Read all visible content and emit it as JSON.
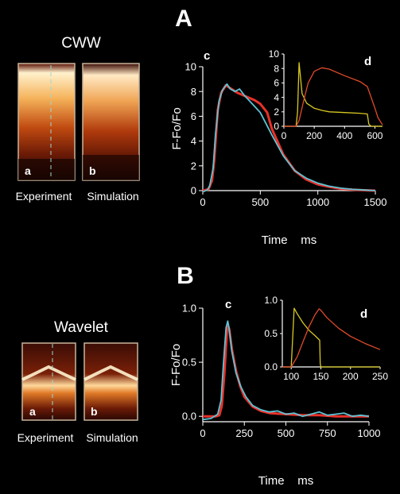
{
  "panels": [
    {
      "letter": "A",
      "condition_label": "CWW",
      "images": [
        {
          "letter": "a",
          "caption": "Experiment"
        },
        {
          "letter": "b",
          "caption": "Simulation"
        }
      ]
    },
    {
      "letter": "B",
      "condition_label": "Wavelet",
      "images": [
        {
          "letter": "a",
          "caption": "Experiment"
        },
        {
          "letter": "b",
          "caption": "Simulation"
        }
      ]
    }
  ],
  "colors": {
    "background": "#000000",
    "simulation_trace": "#e8312a",
    "experiment_trace": "#5ec3d4",
    "inset_trace_yellow": "#d8c822",
    "inset_trace_red": "#e04a2a",
    "axes": "#ffffff"
  },
  "chart_data": [
    {
      "id": "A-c",
      "type": "line",
      "panel_letter": "c",
      "xlabel": "Time    ms",
      "ylabel": "F-Fo/Fo",
      "xlim": [
        0,
        1500
      ],
      "ylim": [
        0,
        10
      ],
      "xticks": [
        0,
        500,
        1000,
        1500
      ],
      "yticks": [
        0,
        2,
        4,
        6,
        8,
        10
      ],
      "ytick_labels": [
        "0",
        "2",
        "4",
        "6",
        "8",
        "10"
      ],
      "series": [
        {
          "color_key": "simulation_trace",
          "x": [
            0,
            50,
            80,
            100,
            130,
            160,
            200,
            250,
            300,
            350,
            400,
            450,
            500,
            560,
            600,
            700,
            800,
            900,
            1000,
            1100,
            1200,
            1300,
            1400,
            1500
          ],
          "y": [
            0,
            0.1,
            0.8,
            2.5,
            6.5,
            7.9,
            8.5,
            8.2,
            7.9,
            7.7,
            7.5,
            7.3,
            7.0,
            6.3,
            5.0,
            2.9,
            1.6,
            0.9,
            0.5,
            0.3,
            0.15,
            0.08,
            0.03,
            0.0
          ]
        },
        {
          "color_key": "experiment_trace",
          "x": [
            0,
            40,
            60,
            90,
            110,
            140,
            170,
            210,
            240,
            280,
            320,
            360,
            400,
            450,
            500,
            550,
            600,
            700,
            800,
            900,
            1000,
            1100,
            1200,
            1300,
            1400,
            1500
          ],
          "y": [
            -0.1,
            0.05,
            0.4,
            1.8,
            4.5,
            7.2,
            8.1,
            8.6,
            8.2,
            8.0,
            8.2,
            7.7,
            7.3,
            6.8,
            6.3,
            5.4,
            4.5,
            2.8,
            1.6,
            1.0,
            0.6,
            0.35,
            0.2,
            0.1,
            0.05,
            0.0
          ]
        }
      ]
    },
    {
      "id": "A-d",
      "type": "line",
      "panel_letter": "d",
      "xlim": [
        0,
        650
      ],
      "ylim": [
        0,
        10
      ],
      "xticks": [
        0,
        200,
        400,
        600
      ],
      "yticks": [
        0,
        2,
        4,
        6,
        8,
        10
      ],
      "ytick_labels": [
        "0",
        "2",
        "4",
        "6",
        "8",
        "10"
      ],
      "series": [
        {
          "color_key": "inset_trace_yellow",
          "x": [
            0,
            80,
            90,
            100,
            120,
            150,
            200,
            250,
            300,
            400,
            500,
            550,
            560,
            575,
            650
          ],
          "y": [
            0,
            0,
            2.0,
            8.8,
            4.5,
            3.2,
            2.5,
            2.2,
            2.0,
            1.9,
            1.8,
            1.7,
            0.3,
            0,
            0
          ]
        },
        {
          "color_key": "inset_trace_red",
          "x": [
            0,
            80,
            100,
            130,
            160,
            200,
            250,
            300,
            400,
            500,
            550,
            600,
            620,
            650
          ],
          "y": [
            0,
            0,
            0.8,
            3.5,
            6.0,
            7.6,
            8.1,
            7.9,
            7.0,
            6.2,
            5.5,
            2.5,
            1.2,
            0.2
          ]
        }
      ]
    },
    {
      "id": "B-c",
      "type": "line",
      "panel_letter": "c",
      "xlabel": "Time    ms",
      "ylabel": "F-Fo/Fo",
      "xlim": [
        0,
        1000
      ],
      "ylim": [
        -0.05,
        1.0
      ],
      "xticks": [
        0,
        250,
        500,
        750,
        1000
      ],
      "yticks": [
        0.0,
        0.5,
        1.0
      ],
      "ytick_labels": [
        "0.0",
        "0.5",
        "1.0"
      ],
      "series": [
        {
          "color_key": "simulation_trace",
          "x": [
            0,
            80,
            100,
            115,
            130,
            145,
            150,
            160,
            175,
            200,
            225,
            250,
            300,
            350,
            400,
            500,
            600,
            700,
            800,
            900,
            1000
          ],
          "y": [
            0,
            0,
            0.01,
            0.1,
            0.4,
            0.78,
            0.85,
            0.8,
            0.62,
            0.42,
            0.28,
            0.18,
            0.09,
            0.05,
            0.03,
            0.02,
            0.01,
            0.01,
            0.0,
            0.0,
            0.0
          ]
        },
        {
          "color_key": "experiment_trace",
          "x": [
            0,
            50,
            90,
            110,
            125,
            140,
            150,
            160,
            175,
            200,
            230,
            260,
            300,
            350,
            400,
            450,
            500,
            550,
            600,
            650,
            700,
            750,
            800,
            850,
            900,
            950,
            1000
          ],
          "y": [
            -0.03,
            -0.02,
            0.02,
            0.15,
            0.5,
            0.82,
            0.88,
            0.8,
            0.6,
            0.4,
            0.27,
            0.18,
            0.1,
            0.06,
            0.04,
            0.05,
            0.02,
            0.03,
            0.0,
            0.02,
            0.04,
            0.01,
            0.02,
            0.03,
            0.0,
            0.01,
            0.0
          ]
        }
      ]
    },
    {
      "id": "B-d",
      "type": "line",
      "panel_letter": "d",
      "xlim": [
        85,
        250
      ],
      "ylim": [
        0,
        1.0
      ],
      "xticks": [
        100,
        150,
        200,
        250
      ],
      "yticks": [
        0.0,
        0.5,
        1.0
      ],
      "ytick_labels": [
        "0.0",
        "0.5",
        "1.0"
      ],
      "series": [
        {
          "color_key": "inset_trace_yellow",
          "x": [
            85,
            100,
            105,
            110,
            120,
            130,
            140,
            148,
            149,
            150,
            250
          ],
          "y": [
            0,
            0,
            0.88,
            0.8,
            0.66,
            0.55,
            0.47,
            0.4,
            0.05,
            0,
            0
          ]
        },
        {
          "color_key": "inset_trace_red",
          "x": [
            85,
            100,
            110,
            120,
            130,
            140,
            147,
            150,
            160,
            180,
            200,
            225,
            250
          ],
          "y": [
            0,
            0,
            0.15,
            0.38,
            0.6,
            0.78,
            0.87,
            0.85,
            0.74,
            0.58,
            0.46,
            0.35,
            0.26
          ]
        }
      ]
    }
  ]
}
